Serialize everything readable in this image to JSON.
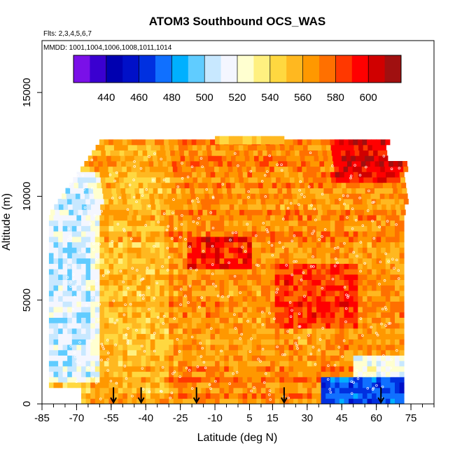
{
  "chart_data": {
    "type": "heatmap",
    "title": "ATOM3 Southbound OCS_WAS",
    "subtitle_flights": "Flts: 2,3,4,5,6,7",
    "subtitle_dates": "MMDD: 1001,1004,1006,1008,1011,1014",
    "xlabel": "Latitude (deg N)",
    "ylabel": "Altitude (m)",
    "xlim": [
      -85,
      85
    ],
    "ylim": [
      0,
      17500
    ],
    "x_ticks": [
      -85,
      -70,
      -55,
      -40,
      -25,
      -10,
      5,
      15,
      30,
      45,
      60,
      75
    ],
    "x_tick_labels": [
      "-85",
      "-70",
      "-55",
      "-40",
      "-25",
      "-10",
      "5",
      "15",
      "30",
      "45",
      "60",
      "75"
    ],
    "x_minor_step": 5,
    "y_ticks": [
      0,
      5000,
      10000,
      15000
    ],
    "y_tick_labels": [
      "0",
      "5000",
      "10000",
      "15000"
    ],
    "colorbar": {
      "range": [
        420,
        620
      ],
      "ticks": [
        440,
        460,
        480,
        500,
        520,
        540,
        560,
        580,
        600
      ],
      "tick_labels": [
        "440",
        "460",
        "480",
        "500",
        "520",
        "540",
        "560",
        "580",
        "600"
      ],
      "colors": [
        "#7a10e8",
        "#3a00d0",
        "#0000b0",
        "#0010c8",
        "#0030e0",
        "#1070ff",
        "#00b0ff",
        "#60ccff",
        "#c8e8ff",
        "#f4f6ff",
        "#ffffd0",
        "#fff080",
        "#ffd840",
        "#ffb820",
        "#ff9800",
        "#ff7000",
        "#ff3800",
        "#ff0000",
        "#d00000",
        "#a01010"
      ]
    },
    "arrows_lat": [
      -54,
      -42,
      -18,
      20,
      62
    ],
    "domain": {
      "lat_min": -82,
      "lat_max": 72,
      "alt_max": 12500,
      "top_strip_alt": 12900,
      "top_strip_lat": [
        -10,
        20
      ]
    },
    "regions": [
      {
        "lat": [
          -82,
          -60
        ],
        "alt": [
          1000,
          11000
        ],
        "value": 520
      },
      {
        "lat": [
          -60,
          -30
        ],
        "alt": [
          200,
          12500
        ],
        "value": 556
      },
      {
        "lat": [
          -30,
          72
        ],
        "alt": [
          200,
          12500
        ],
        "value": 568
      },
      {
        "lat": [
          -22,
          5
        ],
        "alt": [
          6500,
          8000
        ],
        "value": 595
      },
      {
        "lat": [
          15,
          50
        ],
        "alt": [
          3500,
          6500
        ],
        "value": 588
      },
      {
        "lat": [
          40,
          70
        ],
        "alt": [
          10500,
          12500
        ],
        "value": 598
      },
      {
        "lat": [
          35,
          72
        ],
        "alt": [
          0,
          1200
        ],
        "value": 470
      },
      {
        "lat": [
          50,
          72
        ],
        "alt": [
          1200,
          2200
        ],
        "value": 520
      }
    ]
  }
}
